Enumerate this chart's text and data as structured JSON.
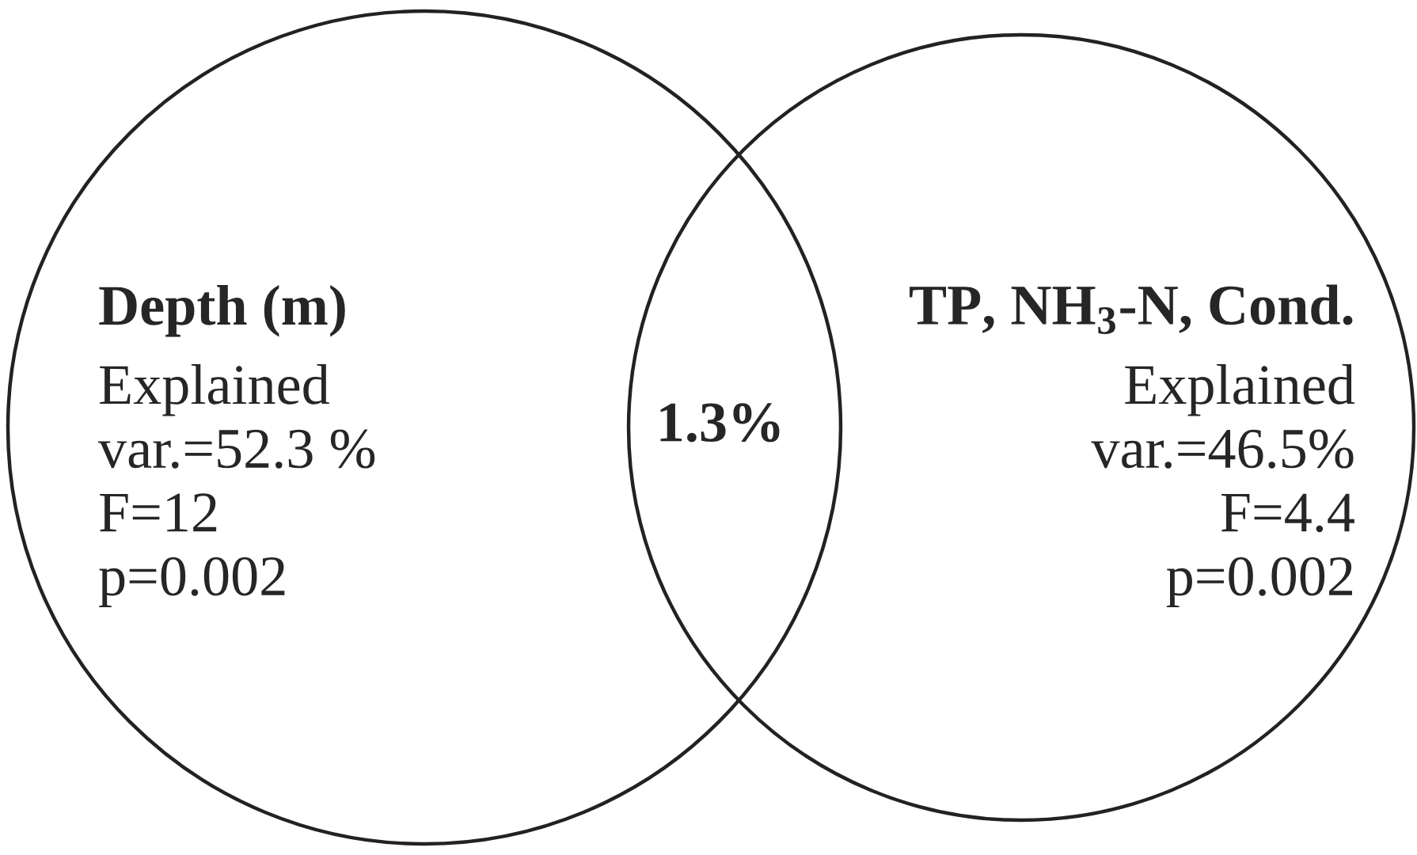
{
  "chart_data": {
    "type": "other",
    "categories": [
      "Depth (m)",
      "TP, NH$_{3}$-N, Cond.",
      null
    ],
    "values": [
      52.3,
      46.5,
      1.3
    ],
    "value_labels": [
      "Explained\nvar.=52.3 %\nF=12\np=0.002",
      "Explained\nvar.=46.5%\nF=4.4\np=0.002",
      "1.3%"
    ]
  }
}
